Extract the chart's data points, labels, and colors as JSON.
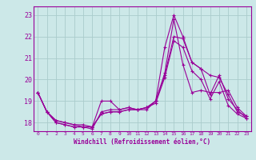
{
  "xlabel": "Windchill (Refroidissement éolien,°C)",
  "bg_color": "#cce8e8",
  "line_color": "#990099",
  "grid_color": "#aacccc",
  "ylim": [
    17.6,
    23.4
  ],
  "xlim": [
    -0.5,
    23.5
  ],
  "yticks": [
    18,
    19,
    20,
    21,
    22,
    23
  ],
  "xticks": [
    0,
    1,
    2,
    3,
    4,
    5,
    6,
    7,
    8,
    9,
    10,
    11,
    12,
    13,
    14,
    15,
    16,
    17,
    18,
    19,
    20,
    21,
    22,
    23
  ],
  "series": [
    [
      19.4,
      18.5,
      18.0,
      17.9,
      17.8,
      17.8,
      17.8,
      19.0,
      19.0,
      18.6,
      18.7,
      18.6,
      18.6,
      19.0,
      21.5,
      23.0,
      22.0,
      20.8,
      20.5,
      20.2,
      20.1,
      19.3,
      18.5,
      18.3
    ],
    [
      19.4,
      18.5,
      18.1,
      18.0,
      17.9,
      17.8,
      17.7,
      18.5,
      18.6,
      18.6,
      18.7,
      18.6,
      18.7,
      19.0,
      20.3,
      22.8,
      20.7,
      19.4,
      19.5,
      19.4,
      19.4,
      19.5,
      18.7,
      18.3
    ],
    [
      19.4,
      18.5,
      18.0,
      17.9,
      17.8,
      17.8,
      17.8,
      18.4,
      18.5,
      18.5,
      18.6,
      18.6,
      18.7,
      19.0,
      20.2,
      22.0,
      21.9,
      20.8,
      20.5,
      19.3,
      20.2,
      19.1,
      18.6,
      18.2
    ],
    [
      19.4,
      18.5,
      18.1,
      18.0,
      17.9,
      17.9,
      17.8,
      18.4,
      18.5,
      18.5,
      18.6,
      18.6,
      18.7,
      18.9,
      20.1,
      21.8,
      21.5,
      20.4,
      20.0,
      19.1,
      19.9,
      18.8,
      18.4,
      18.2
    ]
  ]
}
